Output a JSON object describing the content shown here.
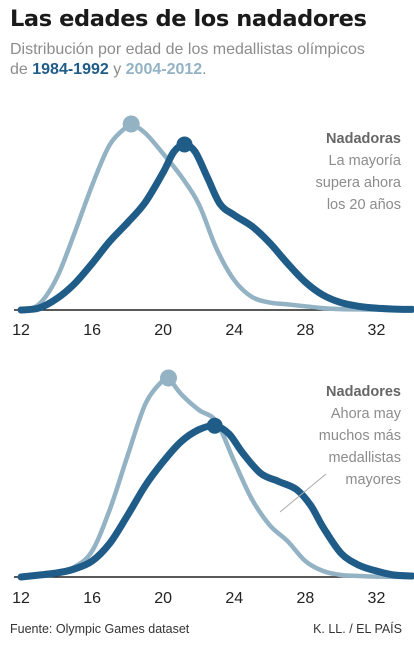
{
  "title": "Las edades de los nadadores",
  "subtitle": {
    "prefix": "Distribución por edad de los medallistas olímpicos de ",
    "period1": "1984-1992",
    "joiner": " y ",
    "period2": "2004-2012",
    "suffix": "."
  },
  "colors": {
    "period1": "#1f5c88",
    "period2": "#93b2c4",
    "axis": "#222222",
    "text": "#8c8c8c"
  },
  "footer": {
    "source": "Fuente: Olympic Games dataset",
    "credit": "K. LL. / EL PAÍS"
  },
  "chart_data": [
    {
      "type": "area",
      "name": "women",
      "annotation_title": "Nadadoras",
      "annotation_lines": [
        "La mayoría",
        "supera ahora",
        "los 20 años"
      ],
      "xlim": [
        12,
        34
      ],
      "xticks": [
        12,
        16,
        20,
        24,
        28,
        32
      ],
      "series": [
        {
          "name": "1984-1992",
          "peak": [
            21.2,
            0.89
          ],
          "points": [
            [
              12,
              0
            ],
            [
              13,
              0.01
            ],
            [
              14,
              0.06
            ],
            [
              15,
              0.14
            ],
            [
              16,
              0.25
            ],
            [
              17,
              0.37
            ],
            [
              18,
              0.47
            ],
            [
              19,
              0.58
            ],
            [
              20,
              0.74
            ],
            [
              20.6,
              0.85
            ],
            [
              21.2,
              0.89
            ],
            [
              21.8,
              0.85
            ],
            [
              22.5,
              0.71
            ],
            [
              23.2,
              0.57
            ],
            [
              24,
              0.51
            ],
            [
              25,
              0.45
            ],
            [
              26,
              0.36
            ],
            [
              27,
              0.25
            ],
            [
              28,
              0.15
            ],
            [
              29,
              0.08
            ],
            [
              30,
              0.04
            ],
            [
              31,
              0.02
            ],
            [
              32,
              0.01
            ],
            [
              33,
              0.005
            ],
            [
              34,
              0.003
            ]
          ]
        },
        {
          "name": "2004-2012",
          "peak": [
            18.2,
            1
          ],
          "points": [
            [
              12,
              0
            ],
            [
              13,
              0.03
            ],
            [
              14,
              0.17
            ],
            [
              15,
              0.41
            ],
            [
              16,
              0.67
            ],
            [
              17,
              0.89
            ],
            [
              18,
              0.99
            ],
            [
              18.2,
              1
            ],
            [
              19,
              0.95
            ],
            [
              20,
              0.84
            ],
            [
              21,
              0.72
            ],
            [
              22,
              0.57
            ],
            [
              23,
              0.33
            ],
            [
              24,
              0.16
            ],
            [
              25,
              0.07
            ],
            [
              26,
              0.04
            ],
            [
              27,
              0.03
            ],
            [
              28,
              0.02
            ],
            [
              29,
              0.01
            ],
            [
              30,
              0.005
            ],
            [
              31,
              0.003
            ],
            [
              32,
              0.002
            ],
            [
              34,
              0
            ]
          ]
        }
      ]
    },
    {
      "type": "area",
      "name": "men",
      "annotation_title": "Nadadores",
      "annotation_lines": [
        "Ahora may",
        "muchos más",
        "medallistas",
        "mayores"
      ],
      "xlim": [
        12,
        34
      ],
      "xticks": [
        12,
        16,
        20,
        24,
        28,
        32
      ],
      "series": [
        {
          "name": "1984-1992",
          "peak": [
            22.9,
            0.76
          ],
          "points": [
            [
              12,
              0
            ],
            [
              14,
              0.02
            ],
            [
              15,
              0.04
            ],
            [
              16,
              0.08
            ],
            [
              17,
              0.17
            ],
            [
              18,
              0.31
            ],
            [
              19,
              0.46
            ],
            [
              20,
              0.58
            ],
            [
              21,
              0.68
            ],
            [
              22,
              0.74
            ],
            [
              22.9,
              0.76
            ],
            [
              23.7,
              0.72
            ],
            [
              24.5,
              0.62
            ],
            [
              25.5,
              0.52
            ],
            [
              26.5,
              0.48
            ],
            [
              27.5,
              0.44
            ],
            [
              28.3,
              0.36
            ],
            [
              29,
              0.25
            ],
            [
              30,
              0.12
            ],
            [
              31,
              0.06
            ],
            [
              32,
              0.03
            ],
            [
              33,
              0.01
            ],
            [
              34,
              0.005
            ]
          ]
        },
        {
          "name": "2004-2012",
          "peak": [
            20.3,
            1
          ],
          "points": [
            [
              12,
              0
            ],
            [
              14,
              0.02
            ],
            [
              15,
              0.05
            ],
            [
              16,
              0.13
            ],
            [
              17,
              0.34
            ],
            [
              18,
              0.61
            ],
            [
              19,
              0.87
            ],
            [
              20,
              0.99
            ],
            [
              20.3,
              1
            ],
            [
              21,
              0.92
            ],
            [
              22,
              0.84
            ],
            [
              23,
              0.78
            ],
            [
              24,
              0.58
            ],
            [
              25,
              0.39
            ],
            [
              26,
              0.26
            ],
            [
              27,
              0.18
            ],
            [
              28,
              0.08
            ],
            [
              29,
              0.03
            ],
            [
              30,
              0.01
            ],
            [
              31,
              0.005
            ],
            [
              32,
              0.002
            ],
            [
              34,
              0
            ]
          ]
        }
      ]
    }
  ]
}
